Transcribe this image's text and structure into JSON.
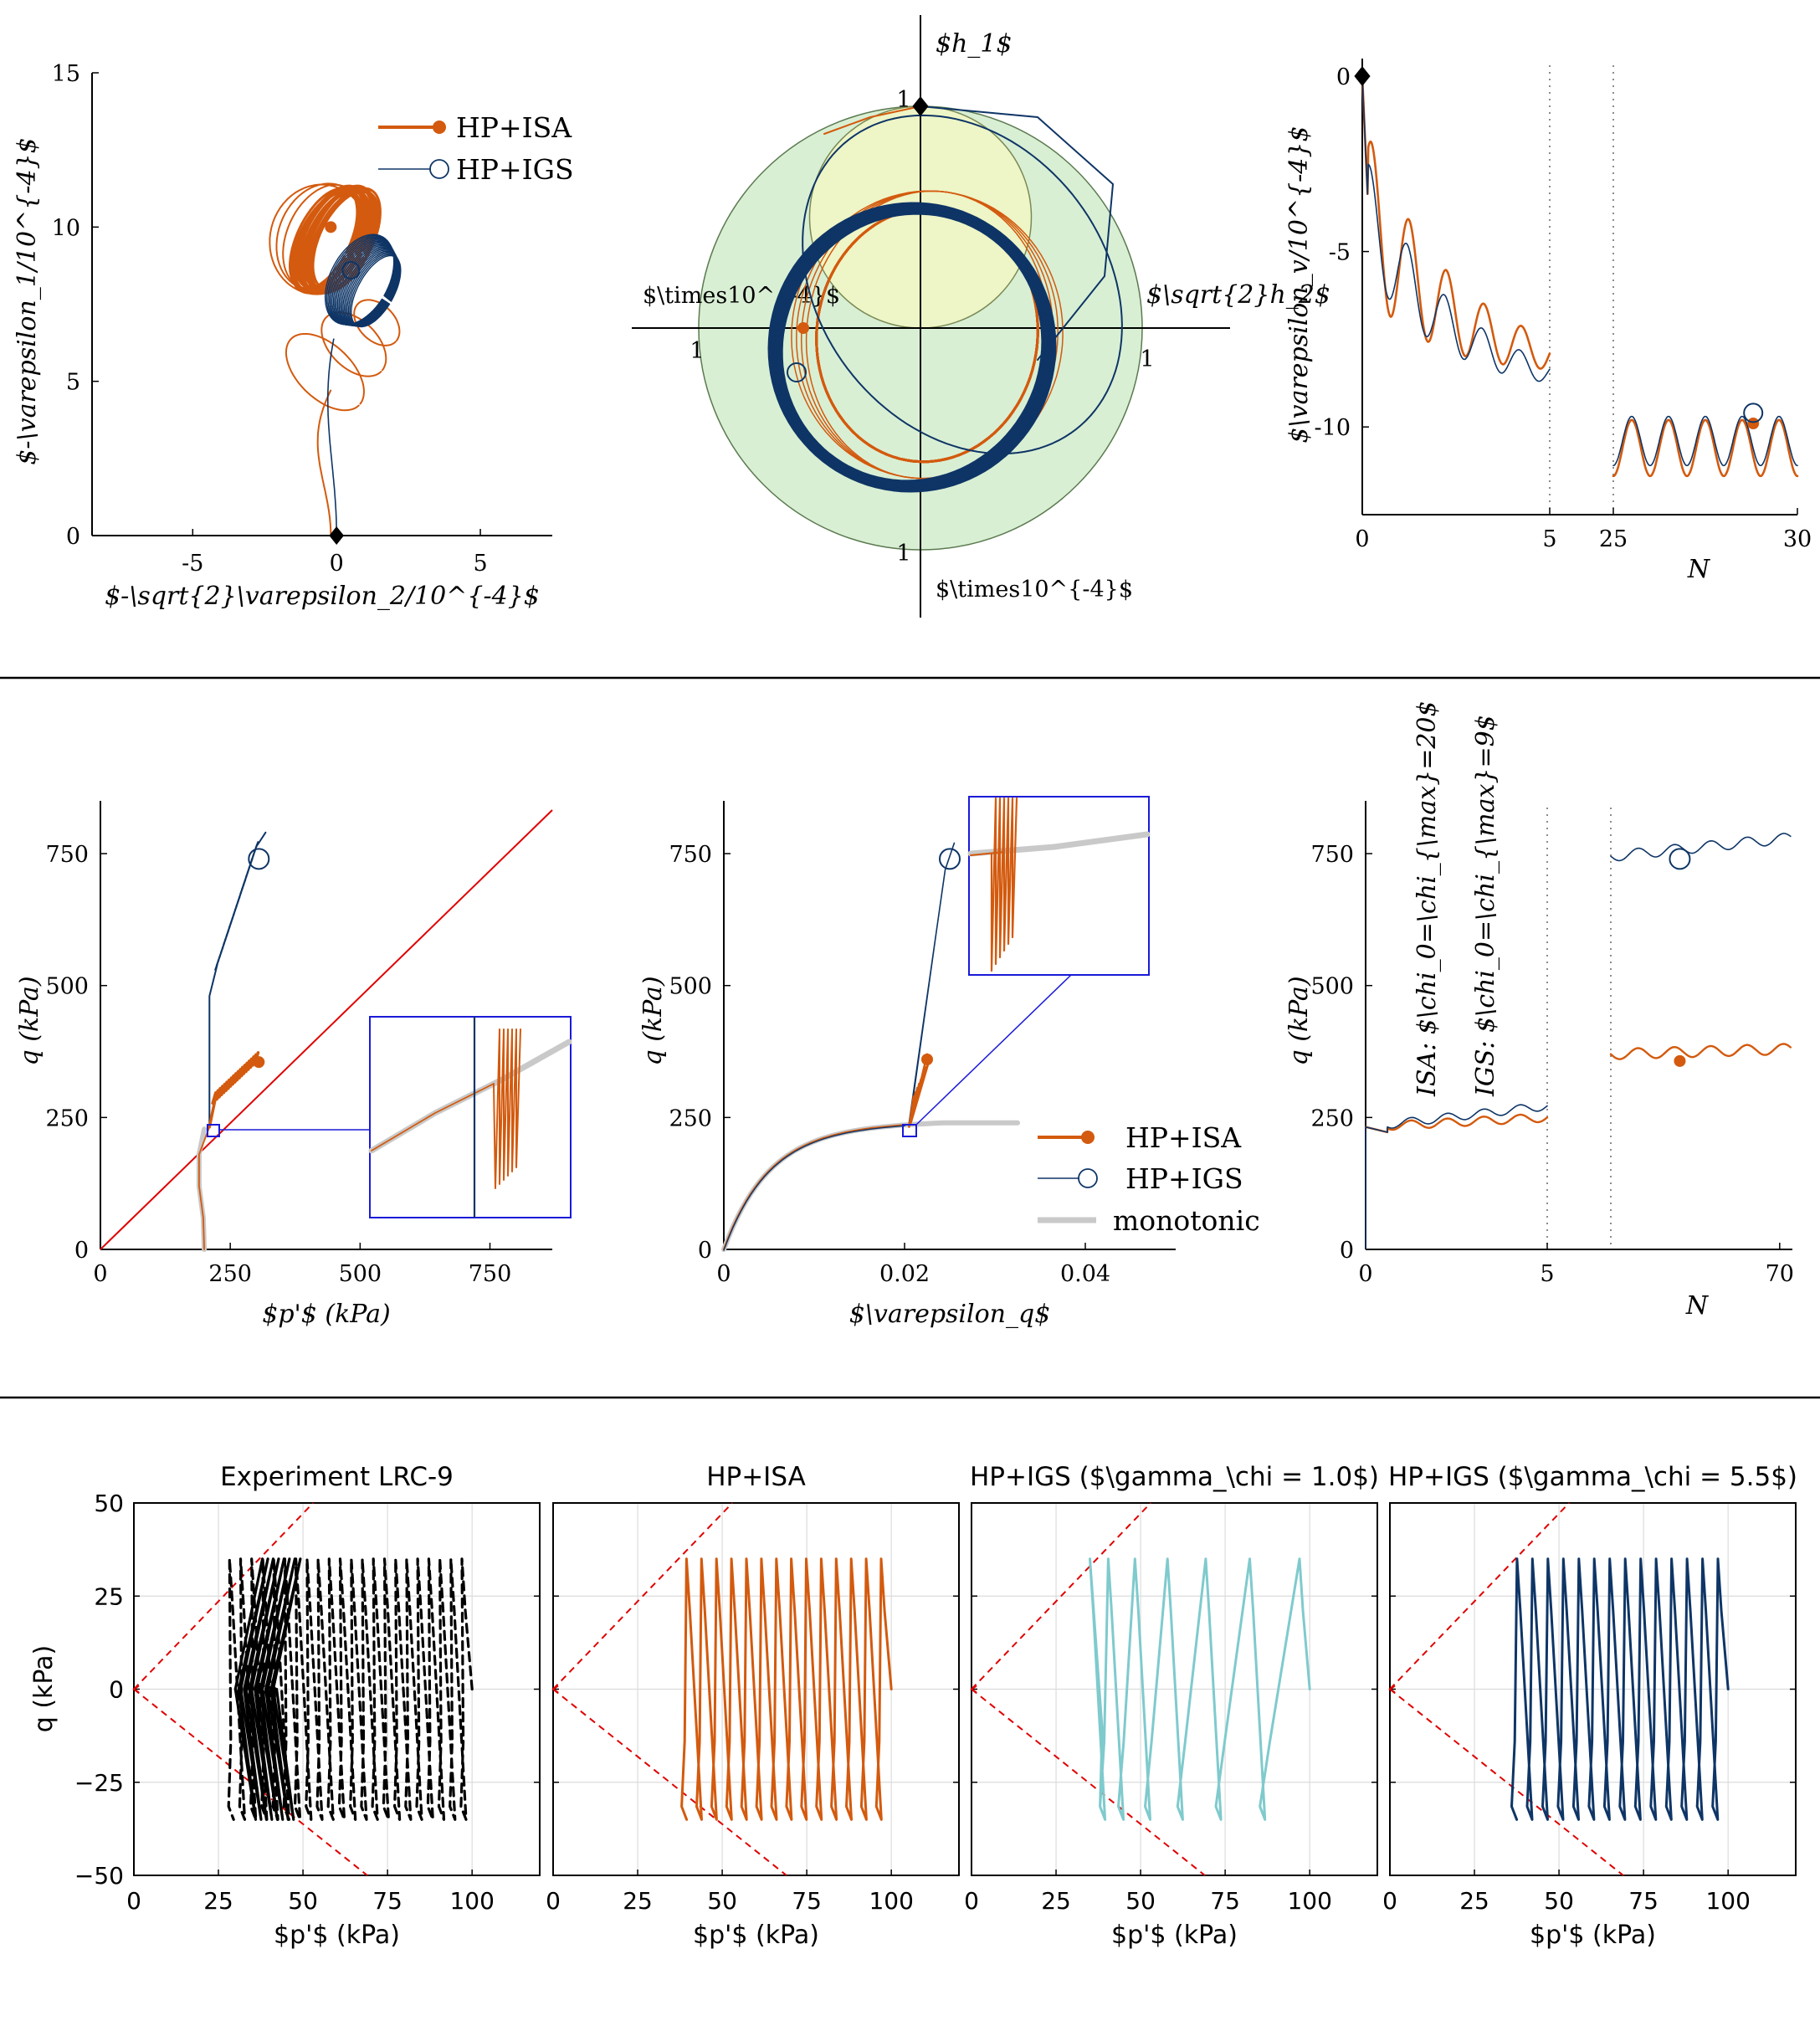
{
  "colors": {
    "isa": "#d35a0e",
    "igs": "#0e3566",
    "igs_light": "#7fcacd",
    "monotonic": "#c9c9c9",
    "experiment": "#000000",
    "csl": "#e00000",
    "inset_box": "#1a1ad8",
    "outer_disk": "#d9efd4",
    "inner_disk": "#eef5c6"
  },
  "icons": {
    "start_marker": "black-diamond",
    "isa_marker": "filled-circle",
    "igs_marker": "open-circle"
  },
  "chart_data": [
    {
      "type": "line",
      "panel": "strain-path",
      "xlabel": "$-\\sqrt{2}\\varepsilon_2/10^{-4}$",
      "ylabel": "$-\\varepsilon_1/10^{-4}$",
      "xlim": [
        -8.5,
        7.5
      ],
      "ylim": [
        0,
        15
      ],
      "xticks": [
        "-5",
        "0",
        "5"
      ],
      "yticks": [
        "0",
        "5",
        "10",
        "15"
      ],
      "series": [
        {
          "name": "HP+ISA",
          "center": [
            -0.6,
            9.6
          ],
          "semi_axes": [
            0.9,
            1.8
          ],
          "cycles": 20
        },
        {
          "name": "HP+IGS",
          "center": [
            0.8,
            8.3
          ],
          "semi_axes": [
            1.0,
            1.6
          ],
          "cycles": 20
        }
      ],
      "start_point": [
        0,
        0
      ],
      "legend": [
        "HP+ISA",
        "HP+IGS"
      ],
      "legend_position": "top-right"
    },
    {
      "type": "line",
      "panel": "stress-direction-polar",
      "xlabel": "$\\sqrt{2}h_2$",
      "ylabel": "$h_1$",
      "tick_labels": [
        "1",
        "1",
        "1",
        "1"
      ],
      "scale_label_left": "$\\times10^{-4}$",
      "scale_label_bottom": "$\\times10^{-4}$",
      "start_point": [
        0,
        1
      ],
      "outer_radius": 1,
      "inner_radius": 0.5
    },
    {
      "type": "line",
      "panel": "volumetric-strain",
      "xlabel": "N",
      "ylabel": "$\\varepsilon_v/10^{-4}$",
      "xticks": [
        "0",
        "5",
        "25",
        "30"
      ],
      "yticks": [
        "0",
        "-5",
        "-10"
      ],
      "ylim": [
        -12.5,
        0.5
      ],
      "broken_axis": [
        5,
        25
      ],
      "series": [
        {
          "name": "HP+ISA",
          "segment1_end": -8.4,
          "segment2_mean": -10.6,
          "amplitude": 0.8
        },
        {
          "name": "HP+IGS",
          "segment1_end": -9.0,
          "segment2_mean": -10.4,
          "amplitude": 0.7
        }
      ]
    },
    {
      "type": "line",
      "panel": "stress-path",
      "xlabel": "$p'$ (kPa)",
      "ylabel": "q (kPa)",
      "xlim": [
        0,
        870
      ],
      "ylim": [
        0,
        850
      ],
      "xticks": [
        "0",
        "250",
        "500",
        "750"
      ],
      "yticks": [
        "0",
        "250",
        "500",
        "750"
      ],
      "series": [
        {
          "name": "HP+ISA",
          "end_point": [
            305,
            355
          ]
        },
        {
          "name": "HP+IGS",
          "end_point": [
            305,
            740
          ]
        },
        {
          "name": "monotonic",
          "end_point": [
            200,
            228
          ]
        }
      ],
      "csl_slope": 0.98
    },
    {
      "type": "line",
      "panel": "stress-strain",
      "xlabel": "$\\varepsilon_q$",
      "ylabel": "q (kPa)",
      "xlim": [
        0,
        0.05
      ],
      "ylim": [
        0,
        850
      ],
      "xticks": [
        "0",
        "0.02",
        "0.04"
      ],
      "yticks": [
        "0",
        "250",
        "500",
        "750"
      ],
      "series": [
        {
          "name": "HP+ISA",
          "end_point": [
            0.0225,
            365
          ]
        },
        {
          "name": "HP+IGS",
          "end_point": [
            0.025,
            740
          ]
        },
        {
          "name": "monotonic",
          "end_point": [
            0.033,
            240
          ]
        }
      ],
      "legend": [
        "HP+ISA",
        "HP+IGS",
        "monotonic"
      ],
      "legend_position": "bottom-right"
    },
    {
      "type": "line",
      "panel": "q-vs-N",
      "xlabel": "N",
      "ylabel": "q (kPa)",
      "xticks": [
        "0",
        "5",
        "70"
      ],
      "yticks": [
        "0",
        "250",
        "500",
        "750"
      ],
      "ylim": [
        0,
        850
      ],
      "annotations": [
        "ISA: $\\chi_0=\\chi_{\\max}=20$",
        "IGS: $\\chi_0=\\chi_{\\max}=9$"
      ],
      "series": [
        {
          "name": "HP+ISA",
          "segment1": [
            232,
            250
          ],
          "segment2": [
            370,
            380
          ]
        },
        {
          "name": "HP+IGS",
          "segment1": [
            232,
            272
          ],
          "segment2": [
            745,
            780
          ]
        }
      ]
    },
    {
      "type": "line",
      "panel": "experiment",
      "title": "Experiment LRC-9",
      "xlabel": "$p'$ (kPa)",
      "ylabel": "q (kPa)",
      "xlim": [
        0,
        120
      ],
      "ylim": [
        -50,
        50
      ],
      "xticks": [
        "0",
        "25",
        "50",
        "75",
        "100"
      ],
      "yticks": [
        "50",
        "25",
        "0",
        "−25",
        "−50"
      ],
      "q_amplitude": 35,
      "p_start": 100,
      "p_end": 28
    },
    {
      "type": "line",
      "panel": "hp-isa",
      "title": "HP+ISA",
      "xlabel": "$p'$ (kPa)",
      "xlim": [
        0,
        120
      ],
      "ylim": [
        -50,
        50
      ],
      "xticks": [
        "0",
        "25",
        "50",
        "75",
        "100"
      ],
      "q_amplitude": 35,
      "p_start": 100,
      "p_end": 38
    },
    {
      "type": "line",
      "panel": "hp-igs-1",
      "title": "HP+IGS ($\\gamma_\\chi = 1.0$)",
      "xlabel": "$p'$ (kPa)",
      "xlim": [
        0,
        120
      ],
      "ylim": [
        -50,
        50
      ],
      "xticks": [
        "0",
        "25",
        "50",
        "75",
        "100"
      ],
      "q_amplitude": 35,
      "p_start": 100,
      "p_end": 38
    },
    {
      "type": "line",
      "panel": "hp-igs-55",
      "title": "HP+IGS ($\\gamma_\\chi = 5.5$)",
      "xlabel": "$p'$ (kPa)",
      "xlim": [
        0,
        120
      ],
      "ylim": [
        -50,
        50
      ],
      "xticks": [
        "0",
        "25",
        "50",
        "75",
        "100"
      ],
      "q_amplitude": 35,
      "p_start": 100,
      "p_end": 36
    }
  ]
}
